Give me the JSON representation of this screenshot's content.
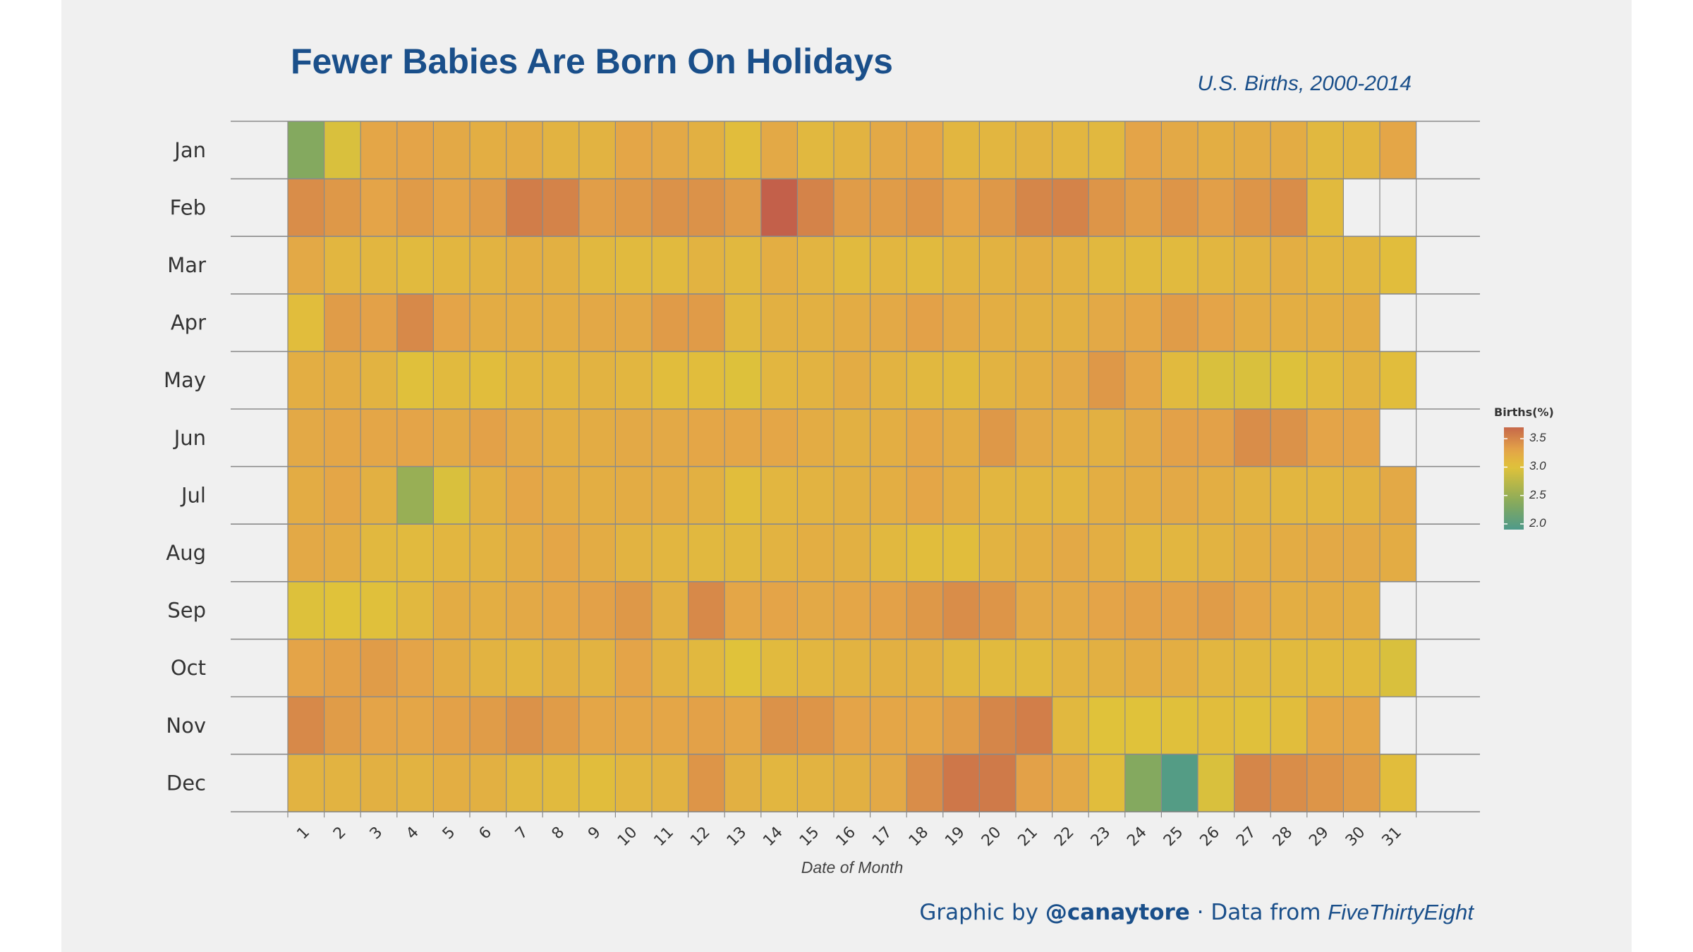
{
  "title": "Fewer Babies Are Born On Holidays",
  "subtitle": "U.S. Births, 2000-2014",
  "credit": {
    "prefix": "Graphic by ",
    "handle": "@canaytore",
    "middle": " · Data from ",
    "source": "FiveThirtyEight"
  },
  "chart_data": {
    "type": "heatmap",
    "title": "Fewer Babies Are Born On Holidays",
    "subtitle": "U.S. Births, 2000-2014",
    "xlabel": "Date of Month",
    "ylabel": "",
    "x": [
      1,
      2,
      3,
      4,
      5,
      6,
      7,
      8,
      9,
      10,
      11,
      12,
      13,
      14,
      15,
      16,
      17,
      18,
      19,
      20,
      21,
      22,
      23,
      24,
      25,
      26,
      27,
      28,
      29,
      30,
      31
    ],
    "y": [
      "Jan",
      "Feb",
      "Mar",
      "Apr",
      "May",
      "Jun",
      "Jul",
      "Aug",
      "Sep",
      "Oct",
      "Nov",
      "Dec"
    ],
    "legend": {
      "title": "Births(%)",
      "ticks": [
        3.5,
        3.0,
        2.5,
        2.0
      ],
      "tick_labels": [
        "3.5",
        "3.0",
        "2.5",
        "2.0"
      ],
      "range": [
        1.9,
        3.7
      ],
      "placement": "right"
    },
    "colors": {
      "low": "#4e9a8a",
      "mid_low": "#8aab5a",
      "mid": "#e0c23a",
      "mid_high": "#e4a448",
      "high": "#c3604a"
    },
    "grid": true,
    "values": [
      [
        2.35,
        2.95,
        3.28,
        3.3,
        3.25,
        3.2,
        3.22,
        3.15,
        3.15,
        3.28,
        3.25,
        3.18,
        3.05,
        3.25,
        3.1,
        3.15,
        3.25,
        3.28,
        3.12,
        3.12,
        3.15,
        3.12,
        3.1,
        3.3,
        3.25,
        3.2,
        3.22,
        3.22,
        3.1,
        3.12,
        3.28
      ],
      [
        3.45,
        3.38,
        3.3,
        3.36,
        3.3,
        3.35,
        3.56,
        3.52,
        3.34,
        3.37,
        3.42,
        3.42,
        3.35,
        3.75,
        3.52,
        3.35,
        3.35,
        3.4,
        3.3,
        3.38,
        3.5,
        3.52,
        3.4,
        3.34,
        3.4,
        3.33,
        3.4,
        3.45,
        3.08,
        null,
        null
      ],
      [
        3.25,
        3.12,
        3.12,
        3.08,
        3.12,
        3.15,
        3.2,
        3.18,
        3.1,
        3.08,
        3.08,
        3.15,
        3.1,
        3.2,
        3.14,
        3.08,
        3.12,
        3.08,
        3.14,
        3.16,
        3.2,
        3.16,
        3.1,
        3.08,
        3.08,
        3.12,
        3.15,
        3.2,
        3.12,
        3.12,
        3.05
      ],
      [
        3.05,
        3.35,
        3.32,
        3.48,
        3.3,
        3.22,
        3.22,
        3.22,
        3.26,
        3.26,
        3.36,
        3.36,
        3.1,
        3.18,
        3.18,
        3.22,
        3.25,
        3.32,
        3.25,
        3.2,
        3.18,
        3.18,
        3.25,
        3.28,
        3.35,
        3.3,
        3.22,
        3.2,
        3.2,
        3.22,
        null
      ],
      [
        3.2,
        3.22,
        3.15,
        3.02,
        3.08,
        3.05,
        3.12,
        3.12,
        3.15,
        3.12,
        3.05,
        3.05,
        2.98,
        3.12,
        3.15,
        3.22,
        3.15,
        3.1,
        3.08,
        3.15,
        3.2,
        3.25,
        3.38,
        3.28,
        3.08,
        2.95,
        2.95,
        2.98,
        3.08,
        3.15,
        3.05
      ],
      [
        3.25,
        3.28,
        3.28,
        3.3,
        3.25,
        3.32,
        3.25,
        3.2,
        3.22,
        3.25,
        3.25,
        3.28,
        3.28,
        3.28,
        3.22,
        3.18,
        3.2,
        3.28,
        3.22,
        3.38,
        3.25,
        3.2,
        3.18,
        3.25,
        3.32,
        3.32,
        3.45,
        3.42,
        3.3,
        3.3,
        null
      ],
      [
        3.22,
        3.28,
        3.18,
        2.5,
        2.95,
        3.18,
        3.28,
        3.22,
        3.2,
        3.22,
        3.22,
        3.18,
        3.05,
        3.12,
        3.15,
        3.18,
        3.2,
        3.28,
        3.2,
        3.12,
        3.12,
        3.12,
        3.2,
        3.22,
        3.25,
        3.2,
        3.15,
        3.12,
        3.12,
        3.15,
        3.25
      ],
      [
        3.25,
        3.22,
        3.1,
        3.08,
        3.12,
        3.15,
        3.22,
        3.28,
        3.22,
        3.15,
        3.12,
        3.1,
        3.1,
        3.15,
        3.2,
        3.18,
        3.1,
        3.05,
        3.05,
        3.15,
        3.2,
        3.25,
        3.2,
        3.12,
        3.12,
        3.15,
        3.2,
        3.22,
        3.25,
        3.25,
        3.22
      ],
      [
        2.98,
        3.0,
        3.02,
        3.1,
        3.22,
        3.2,
        3.25,
        3.28,
        3.32,
        3.38,
        3.18,
        3.48,
        3.28,
        3.3,
        3.25,
        3.28,
        3.32,
        3.38,
        3.45,
        3.4,
        3.25,
        3.25,
        3.3,
        3.32,
        3.32,
        3.35,
        3.28,
        3.2,
        3.22,
        3.2,
        null
      ],
      [
        3.3,
        3.32,
        3.35,
        3.3,
        3.22,
        3.15,
        3.12,
        3.18,
        3.15,
        3.3,
        3.15,
        3.1,
        3.0,
        3.08,
        3.12,
        3.15,
        3.18,
        3.18,
        3.1,
        3.08,
        3.08,
        3.15,
        3.18,
        3.22,
        3.2,
        3.12,
        3.1,
        3.08,
        3.08,
        3.08,
        2.95
      ],
      [
        3.48,
        3.35,
        3.3,
        3.28,
        3.32,
        3.35,
        3.42,
        3.35,
        3.28,
        3.28,
        3.28,
        3.32,
        3.28,
        3.42,
        3.4,
        3.3,
        3.28,
        3.28,
        3.35,
        3.5,
        3.55,
        3.1,
        3.0,
        3.0,
        3.02,
        3.05,
        3.02,
        3.05,
        3.28,
        3.28,
        null
      ],
      [
        3.15,
        3.15,
        3.18,
        3.15,
        3.2,
        3.18,
        3.1,
        3.08,
        3.05,
        3.12,
        3.15,
        3.4,
        3.18,
        3.12,
        3.15,
        3.18,
        3.25,
        3.45,
        3.6,
        3.58,
        3.32,
        3.25,
        3.05,
        2.35,
        1.95,
        2.95,
        3.5,
        3.45,
        3.4,
        3.35,
        3.05
      ]
    ]
  }
}
